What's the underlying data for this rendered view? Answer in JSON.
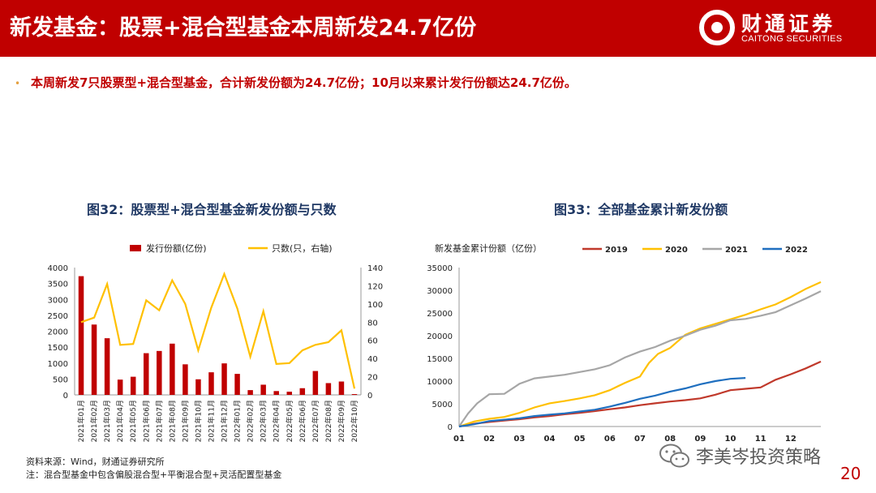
{
  "header": {
    "title": "新发基金：股票+混合型基金本周新发24.7亿份",
    "logo_name": "财通证券",
    "logo_en": "CAITONG SECURITIES",
    "bg_color": "#c00000"
  },
  "bullet": "本周新发7只股票型+混合型基金，合计新发份额为24.7亿份；10月以来累计发行份额达24.7亿份。",
  "chart_data": [
    {
      "type": "bar",
      "title": "图32：股票型+混合型基金新发份额与只数",
      "categories": [
        "2021年01月",
        "2021年02月",
        "2021年03月",
        "2021年04月",
        "2021年05月",
        "2021年06月",
        "2021年07月",
        "2021年08月",
        "2021年09月",
        "2021年10月",
        "2021年11月",
        "2021年12月",
        "2022年01月",
        "2022年02月",
        "2022年03月",
        "2022年04月",
        "2022年05月",
        "2022年06月",
        "2022年07月",
        "2022年08月",
        "2022年09月",
        "2022年10月"
      ],
      "series": [
        {
          "name": "发行份额(亿份)",
          "type": "bar",
          "axis": "left",
          "color": "#c00000",
          "values": [
            3730,
            2210,
            1780,
            480,
            570,
            1310,
            1380,
            1610,
            960,
            490,
            710,
            990,
            660,
            150,
            320,
            120,
            100,
            210,
            750,
            370,
            420,
            25
          ]
        },
        {
          "name": "只数(只，右轴)",
          "type": "line",
          "axis": "right",
          "color": "#ffc000",
          "values": [
            80,
            85,
            122,
            55,
            56,
            104,
            93,
            126,
            100,
            49,
            96,
            133,
            95,
            42,
            92,
            34,
            35,
            49,
            55,
            58,
            71,
            7
          ]
        }
      ],
      "ylim": [
        0,
        4000
      ],
      "yticks": [
        0,
        500,
        1000,
        1500,
        2000,
        2500,
        3000,
        3500,
        4000
      ],
      "y2lim": [
        0,
        140
      ],
      "y2ticks": [
        0,
        20,
        40,
        60,
        80,
        100,
        120,
        140
      ],
      "legend": "top"
    },
    {
      "type": "line",
      "title": "图33：全部基金累计新发份额",
      "ylabel": "新发基金累计份额（亿份）",
      "x_labels": [
        "01",
        "02",
        "03",
        "04",
        "05",
        "06",
        "07",
        "08",
        "09",
        "10",
        "11",
        "12"
      ],
      "xlim": [
        1,
        13
      ],
      "ylim": [
        0,
        35000
      ],
      "yticks": [
        0,
        5000,
        10000,
        15000,
        20000,
        25000,
        30000,
        35000
      ],
      "legend": "top",
      "series": [
        {
          "name": "2019",
          "color": "#c0392b",
          "x": [
            1,
            1.5,
            2,
            2.5,
            3,
            3.5,
            4,
            4.5,
            5,
            5.5,
            6,
            6.5,
            7,
            7.5,
            8,
            8.5,
            9,
            9.5,
            10,
            10.5,
            11,
            11.5,
            12,
            12.5,
            13
          ],
          "y": [
            0,
            600,
            1000,
            1300,
            1600,
            2000,
            2300,
            2700,
            3000,
            3400,
            3800,
            4200,
            4700,
            5100,
            5500,
            5800,
            6200,
            7000,
            8000,
            8300,
            8600,
            10300,
            11500,
            12800,
            14300
          ]
        },
        {
          "name": "2020",
          "color": "#ffc000",
          "x": [
            1,
            1.5,
            2,
            2.5,
            3,
            3.5,
            4,
            4.5,
            5,
            5.5,
            6,
            6.5,
            7,
            7.3,
            7.6,
            8,
            8.5,
            9,
            9.5,
            10,
            10.5,
            11,
            11.5,
            12,
            12.5,
            13
          ],
          "y": [
            0,
            1100,
            1700,
            2100,
            3000,
            4200,
            5100,
            5600,
            6200,
            6900,
            8000,
            9600,
            11000,
            14000,
            16000,
            17300,
            20200,
            21600,
            22600,
            23600,
            24600,
            25800,
            26900,
            28500,
            30300,
            31800
          ]
        },
        {
          "name": "2021",
          "color": "#a6a6a6",
          "x": [
            1,
            1.3,
            1.6,
            2,
            2.5,
            3,
            3.5,
            4,
            4.5,
            5,
            5.5,
            6,
            6.5,
            7,
            7.5,
            8,
            8.5,
            9,
            9.5,
            10,
            10.5,
            11,
            11.5,
            12,
            12.5,
            13
          ],
          "y": [
            0,
            2900,
            5100,
            7100,
            7200,
            9400,
            10600,
            11000,
            11400,
            12000,
            12600,
            13500,
            15200,
            16500,
            17500,
            18900,
            20000,
            21300,
            22200,
            23400,
            23700,
            24400,
            25200,
            26700,
            28200,
            29800
          ]
        },
        {
          "name": "2022",
          "color": "#1f6fbf",
          "x": [
            1,
            1.5,
            2,
            2.5,
            3,
            3.5,
            4,
            4.5,
            5,
            5.5,
            6,
            6.5,
            7,
            7.5,
            8,
            8.5,
            9,
            9.5,
            10,
            10.5
          ],
          "y": [
            0,
            500,
            1200,
            1500,
            1800,
            2300,
            2600,
            2900,
            3300,
            3700,
            4400,
            5200,
            6100,
            6800,
            7700,
            8400,
            9300,
            10000,
            10500,
            10700
          ]
        }
      ]
    }
  ],
  "notes": {
    "source": "资料来源：Wind，财通证券研究所",
    "note": "注：混合型基金中包含偏股混合型+平衡混合型+灵活配置型基金"
  },
  "watermark": "李美岑投资策略",
  "page_number": "20"
}
